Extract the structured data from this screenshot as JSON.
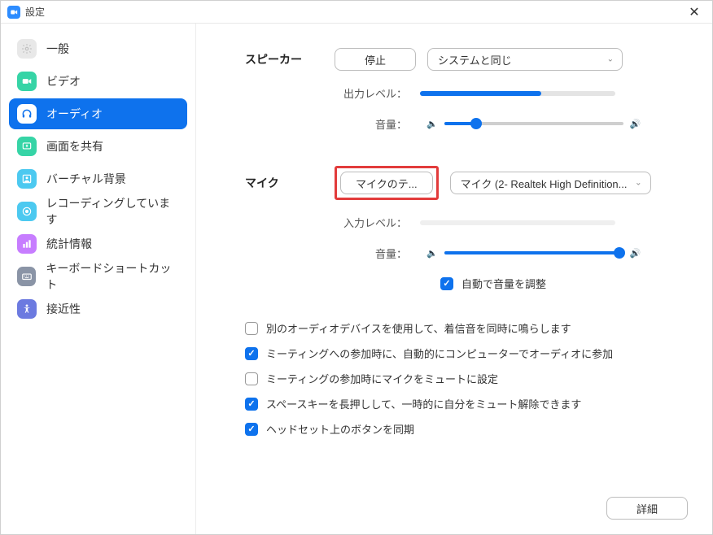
{
  "window": {
    "title": "設定"
  },
  "sidebar": {
    "items": [
      {
        "label": "一般",
        "icon_bg": "#e8e8e8",
        "icon_fg": "#c0c0c0",
        "icon": "gear"
      },
      {
        "label": "ビデオ",
        "icon_bg": "#36d4a6",
        "icon_fg": "#ffffff",
        "icon": "video"
      },
      {
        "label": "オーディオ",
        "icon_bg": "#ffffff",
        "icon_fg": "#0e72ed",
        "icon": "headphones",
        "active": true
      },
      {
        "label": "画面を共有",
        "icon_bg": "#36d4a6",
        "icon_fg": "#ffffff",
        "icon": "share"
      },
      {
        "label": "バーチャル背景",
        "icon_bg": "#4cc9f0",
        "icon_fg": "#ffffff",
        "icon": "bg"
      },
      {
        "label": "レコーディングしています",
        "icon_bg": "#4cc9f0",
        "icon_fg": "#ffffff",
        "icon": "record"
      },
      {
        "label": "統計情報",
        "icon_bg": "#c77dff",
        "icon_fg": "#ffffff",
        "icon": "stats"
      },
      {
        "label": "キーボードショートカット",
        "icon_bg": "#8a94a6",
        "icon_fg": "#ffffff",
        "icon": "keyboard"
      },
      {
        "label": "接近性",
        "icon_bg": "#6c7ae0",
        "icon_fg": "#ffffff",
        "icon": "access"
      }
    ]
  },
  "audio": {
    "speaker": {
      "title": "スピーカー",
      "test_button": "停止",
      "device": "システムと同じ",
      "output_level_label": "出力レベル：",
      "output_level_pct": 62,
      "volume_label": "音量：",
      "volume_pct": 18
    },
    "mic": {
      "title": "マイク",
      "test_button": "マイクのテ...",
      "device": "マイク (2- Realtek High Definition...",
      "input_level_label": "入力レベル：",
      "input_level_pct": 0,
      "volume_label": "音量：",
      "volume_pct": 98,
      "auto_adjust": {
        "checked": true,
        "label": "自動で音量を調整"
      }
    },
    "options": [
      {
        "checked": false,
        "label": "別のオーディオデバイスを使用して、着信音を同時に鳴らします"
      },
      {
        "checked": true,
        "label": "ミーティングへの参加時に、自動的にコンピューターでオーディオに参加"
      },
      {
        "checked": false,
        "label": "ミーティングの参加時にマイクをミュートに設定"
      },
      {
        "checked": true,
        "label": "スペースキーを長押しして、一時的に自分をミュート解除できます"
      },
      {
        "checked": true,
        "label": "ヘッドセット上のボタンを同期"
      }
    ],
    "advanced_button": "詳細"
  },
  "colors": {
    "accent": "#0e72ed",
    "highlight_border": "#e23b3b"
  }
}
